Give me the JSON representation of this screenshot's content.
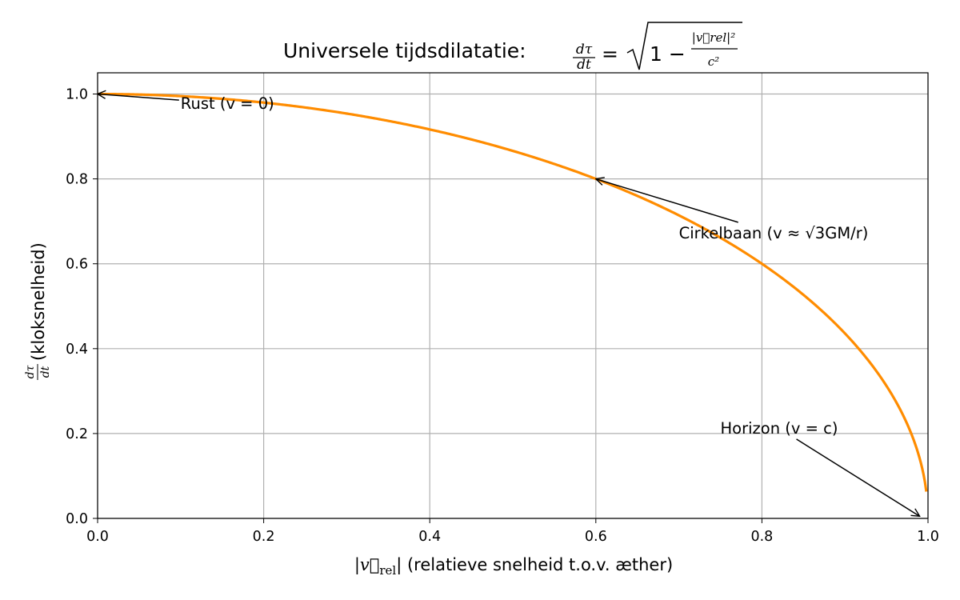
{
  "chart_data": {
    "type": "line",
    "title": "Universele tijdsdilatatie: dτ/dt = √(1 − |v⃗rel|²/c²)",
    "title_parts": {
      "prefix": "Universele tijdsdilatatie: ",
      "lhs_num": "dτ",
      "lhs_den": "dt",
      "equals": "=",
      "one_minus": "1 −",
      "frac_num": "|v⃗rel|²",
      "frac_den": "c²"
    },
    "xlabel": "|v⃗rel| (relatieve snelheid t.o.v. æther)",
    "xlabel_parts": {
      "math": "|v⃗",
      "sub": "rel",
      "close": "|",
      "text": " (relatieve snelheid t.o.v. æther)"
    },
    "ylabel": "dτ/dt (kloksnelheid)",
    "ylabel_parts": {
      "num": "dτ",
      "den": "dt",
      "text": " (kloksnelheid)"
    },
    "xlim": [
      0.0,
      1.0
    ],
    "ylim": [
      0.0,
      1.05
    ],
    "xticks": [
      0.0,
      0.2,
      0.4,
      0.6,
      0.8,
      1.0
    ],
    "xtick_labels": [
      "0.0",
      "0.2",
      "0.4",
      "0.6",
      "0.8",
      "1.0"
    ],
    "yticks": [
      0.0,
      0.2,
      0.4,
      0.6,
      0.8,
      1.0
    ],
    "ytick_labels": [
      "0.0",
      "0.2",
      "0.4",
      "0.6",
      "0.8",
      "1.0"
    ],
    "grid": true,
    "series": [
      {
        "color": "#ff8c00",
        "function": "sqrt(1 - x^2)",
        "x_range": [
          0.0,
          0.998
        ]
      }
    ],
    "annotations": [
      {
        "text": "Rust (v = 0)",
        "point": [
          0.0,
          1.0
        ],
        "text_pos": [
          0.1,
          0.965
        ]
      },
      {
        "text": "Cirkelbaan (v ≈ √3GM/r)",
        "point": [
          0.6,
          0.8
        ],
        "text_pos": [
          0.7,
          0.66
        ]
      },
      {
        "text": "Horizon (v = c)",
        "point": [
          0.99,
          0.005
        ],
        "text_pos": [
          0.75,
          0.2
        ]
      }
    ]
  }
}
